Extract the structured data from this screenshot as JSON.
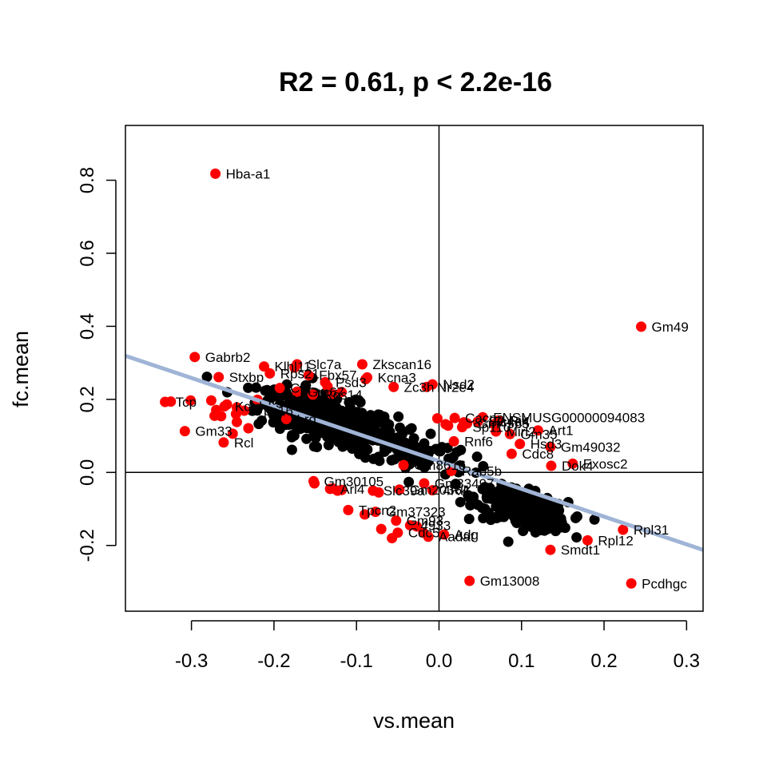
{
  "chart_data": {
    "type": "scatter",
    "title": "R2 = 0.61, p < 2.2e-16",
    "xlabel": "vs.mean",
    "ylabel": "fc.mean",
    "xlim": [
      -0.38,
      0.32
    ],
    "ylim": [
      -0.38,
      0.95
    ],
    "x_ticks": [
      -0.3,
      -0.2,
      -0.1,
      0.0,
      0.1,
      0.2,
      0.3
    ],
    "x_tick_labels": [
      "-0.3",
      "-0.2",
      "-0.1",
      "0.0",
      "0.1",
      "0.2",
      "0.3"
    ],
    "y_ticks": [
      -0.2,
      0.0,
      0.2,
      0.4,
      0.6,
      0.8
    ],
    "y_tick_labels": [
      "-0.2",
      "0.0",
      "0.2",
      "0.4",
      "0.6",
      "0.8"
    ],
    "reference_lines": {
      "vertical_at_x": 0.0,
      "horizontal_at_y": 0.0
    },
    "regression_line": {
      "intercept": 0.0308,
      "slope": -0.759,
      "color": "#9fb4d6"
    },
    "colors": {
      "highlight": "#ff0000",
      "background_points": "#000000",
      "frame": "#000000"
    },
    "labeled_points": [
      {
        "label": "Hba-a1",
        "x": -0.271,
        "y": 0.818
      },
      {
        "label": "Gm49",
        "x": 0.245,
        "y": 0.399
      },
      {
        "label": "Gabrb2",
        "x": -0.296,
        "y": 0.316
      },
      {
        "label": "Klhl11",
        "x": -0.212,
        "y": 0.29
      },
      {
        "label": "Zkscan16",
        "x": -0.093,
        "y": 0.296
      },
      {
        "label": "Stxbp",
        "x": -0.267,
        "y": 0.261
      },
      {
        "label": "Kcna3",
        "x": -0.087,
        "y": 0.26
      },
      {
        "label": "Nsd2",
        "x": -0.008,
        "y": 0.241
      },
      {
        "label": "Zc3h",
        "x": -0.055,
        "y": 0.234
      },
      {
        "label": "Nr2e4",
        "x": -0.015,
        "y": 0.234
      },
      {
        "label": "Tcp",
        "x": -0.332,
        "y": 0.193
      },
      {
        "label": "Kctd",
        "x": -0.26,
        "y": 0.181
      },
      {
        "label": "Itgb1",
        "x": -0.22,
        "y": 0.199
      },
      {
        "label": "ENSMUSG00000094083",
        "x": 0.053,
        "y": 0.151
      },
      {
        "label": "Art1",
        "x": 0.12,
        "y": 0.115
      },
      {
        "label": "Rnf6",
        "x": 0.018,
        "y": 0.085
      },
      {
        "label": "Gm33",
        "x": -0.308,
        "y": 0.113
      },
      {
        "label": "Rcl",
        "x": -0.261,
        "y": 0.082
      },
      {
        "label": "Hsd3",
        "x": 0.098,
        "y": 0.078
      },
      {
        "label": "Gm49032",
        "x": 0.135,
        "y": 0.07
      },
      {
        "label": "Cdc8",
        "x": 0.088,
        "y": 0.051
      },
      {
        "label": "Dok4",
        "x": 0.136,
        "y": 0.018
      },
      {
        "label": "Exosc2",
        "x": 0.162,
        "y": 0.024
      },
      {
        "label": "Gm8616",
        "x": -0.043,
        "y": 0.02
      },
      {
        "label": "Rab5b",
        "x": 0.015,
        "y": 0.004
      },
      {
        "label": "Gm30105",
        "x": -0.152,
        "y": -0.024
      },
      {
        "label": "Tpcn2",
        "x": -0.11,
        "y": -0.103
      },
      {
        "label": "Rpl31",
        "x": 0.223,
        "y": -0.157
      },
      {
        "label": "Rpl12",
        "x": 0.18,
        "y": -0.186
      },
      {
        "label": "Smdt1",
        "x": 0.135,
        "y": -0.212
      },
      {
        "label": "Aadat",
        "x": -0.013,
        "y": -0.176
      },
      {
        "label": "Gm13008",
        "x": 0.037,
        "y": -0.297
      },
      {
        "label": "Pcdhgc",
        "x": 0.233,
        "y": -0.304
      }
    ],
    "overlap_labels": [
      {
        "label": "Slc7a",
        "x": -0.172,
        "y": 0.296
      },
      {
        "label": "Rps21",
        "x": -0.205,
        "y": 0.271
      },
      {
        "label": "Fbx57",
        "x": -0.158,
        "y": 0.266
      },
      {
        "label": "Psd3",
        "x": -0.138,
        "y": 0.247
      },
      {
        "label": "Cpt",
        "x": -0.193,
        "y": 0.231
      },
      {
        "label": "Gm67",
        "x": -0.172,
        "y": 0.221
      },
      {
        "label": "Rgs14",
        "x": -0.153,
        "y": 0.213
      },
      {
        "label": "Vps16",
        "x": -0.236,
        "y": 0.169
      },
      {
        "label": "Lrg",
        "x": -0.185,
        "y": 0.146
      },
      {
        "label": "Cacna",
        "x": 0.019,
        "y": 0.149
      },
      {
        "label": "Gm4565",
        "x": 0.034,
        "y": 0.134
      },
      {
        "label": "Slc4a4",
        "x": 0.047,
        "y": 0.139
      },
      {
        "label": "Rik",
        "x": 0.072,
        "y": 0.142
      },
      {
        "label": "Sp110",
        "x": 0.028,
        "y": 0.124
      },
      {
        "label": "Mirl2",
        "x": 0.069,
        "y": 0.112
      },
      {
        "label": "Gm35",
        "x": 0.086,
        "y": 0.105
      },
      {
        "label": "Gm33497",
        "x": -0.018,
        "y": -0.03
      },
      {
        "label": "Arl4",
        "x": -0.132,
        "y": -0.045
      },
      {
        "label": "Slc39a",
        "x": -0.08,
        "y": -0.05
      },
      {
        "label": "Gm20364",
        "x": -0.048,
        "y": -0.047
      },
      {
        "label": "4Rik",
        "x": -0.008,
        "y": -0.049
      },
      {
        "label": "Gm37323",
        "x": -0.077,
        "y": -0.108
      },
      {
        "label": "Gm93",
        "x": -0.052,
        "y": -0.132
      },
      {
        "label": "4933",
        "x": -0.035,
        "y": -0.145
      },
      {
        "label": "Cdc5",
        "x": -0.05,
        "y": -0.165
      },
      {
        "label": "Adg",
        "x": 0.006,
        "y": -0.17
      }
    ],
    "unlabeled_highlight_points": [
      {
        "x": -0.325,
        "y": 0.194
      },
      {
        "x": -0.301,
        "y": 0.197
      },
      {
        "x": -0.276,
        "y": 0.197
      },
      {
        "x": -0.27,
        "y": 0.171
      },
      {
        "x": -0.272,
        "y": 0.155
      },
      {
        "x": -0.264,
        "y": 0.154
      },
      {
        "x": -0.257,
        "y": 0.186
      },
      {
        "x": -0.246,
        "y": 0.16
      },
      {
        "x": -0.245,
        "y": 0.138
      },
      {
        "x": -0.25,
        "y": 0.106
      },
      {
        "x": -0.231,
        "y": 0.121
      },
      {
        "x": -0.245,
        "y": 0.178
      },
      {
        "x": -0.151,
        "y": -0.03
      },
      {
        "x": -0.129,
        "y": -0.044
      },
      {
        "x": -0.123,
        "y": -0.05
      },
      {
        "x": -0.118,
        "y": -0.048
      },
      {
        "x": -0.073,
        "y": -0.055
      },
      {
        "x": -0.09,
        "y": -0.115
      },
      {
        "x": -0.07,
        "y": -0.155
      },
      {
        "x": -0.057,
        "y": -0.18
      },
      {
        "x": -0.027,
        "y": -0.148
      },
      {
        "x": -0.019,
        "y": -0.165
      },
      {
        "x": -0.002,
        "y": 0.148
      },
      {
        "x": 0.008,
        "y": 0.132
      },
      {
        "x": 0.011,
        "y": 0.128
      },
      {
        "x": 0.03,
        "y": 0.137
      },
      {
        "x": 0.067,
        "y": 0.132
      },
      {
        "x": -0.135,
        "y": 0.235
      },
      {
        "x": -0.118,
        "y": 0.22
      },
      {
        "x": -0.175,
        "y": 0.287
      },
      {
        "x": -0.13,
        "y": 0.215
      },
      {
        "x": -0.089,
        "y": 0.255
      }
    ],
    "background_clusters": [
      {
        "name": "upper-left",
        "x_center": -0.135,
        "y_center": 0.145,
        "x_spread": 0.06,
        "y_spread": 0.045,
        "count": 380
      },
      {
        "name": "lower-right",
        "x_center": 0.1,
        "y_center": -0.1,
        "x_spread": 0.04,
        "y_spread": 0.035,
        "count": 260
      },
      {
        "name": "middle-bridge",
        "x_center": -0.03,
        "y_center": 0.06,
        "x_spread": 0.05,
        "y_spread": 0.045,
        "count": 80
      }
    ]
  }
}
